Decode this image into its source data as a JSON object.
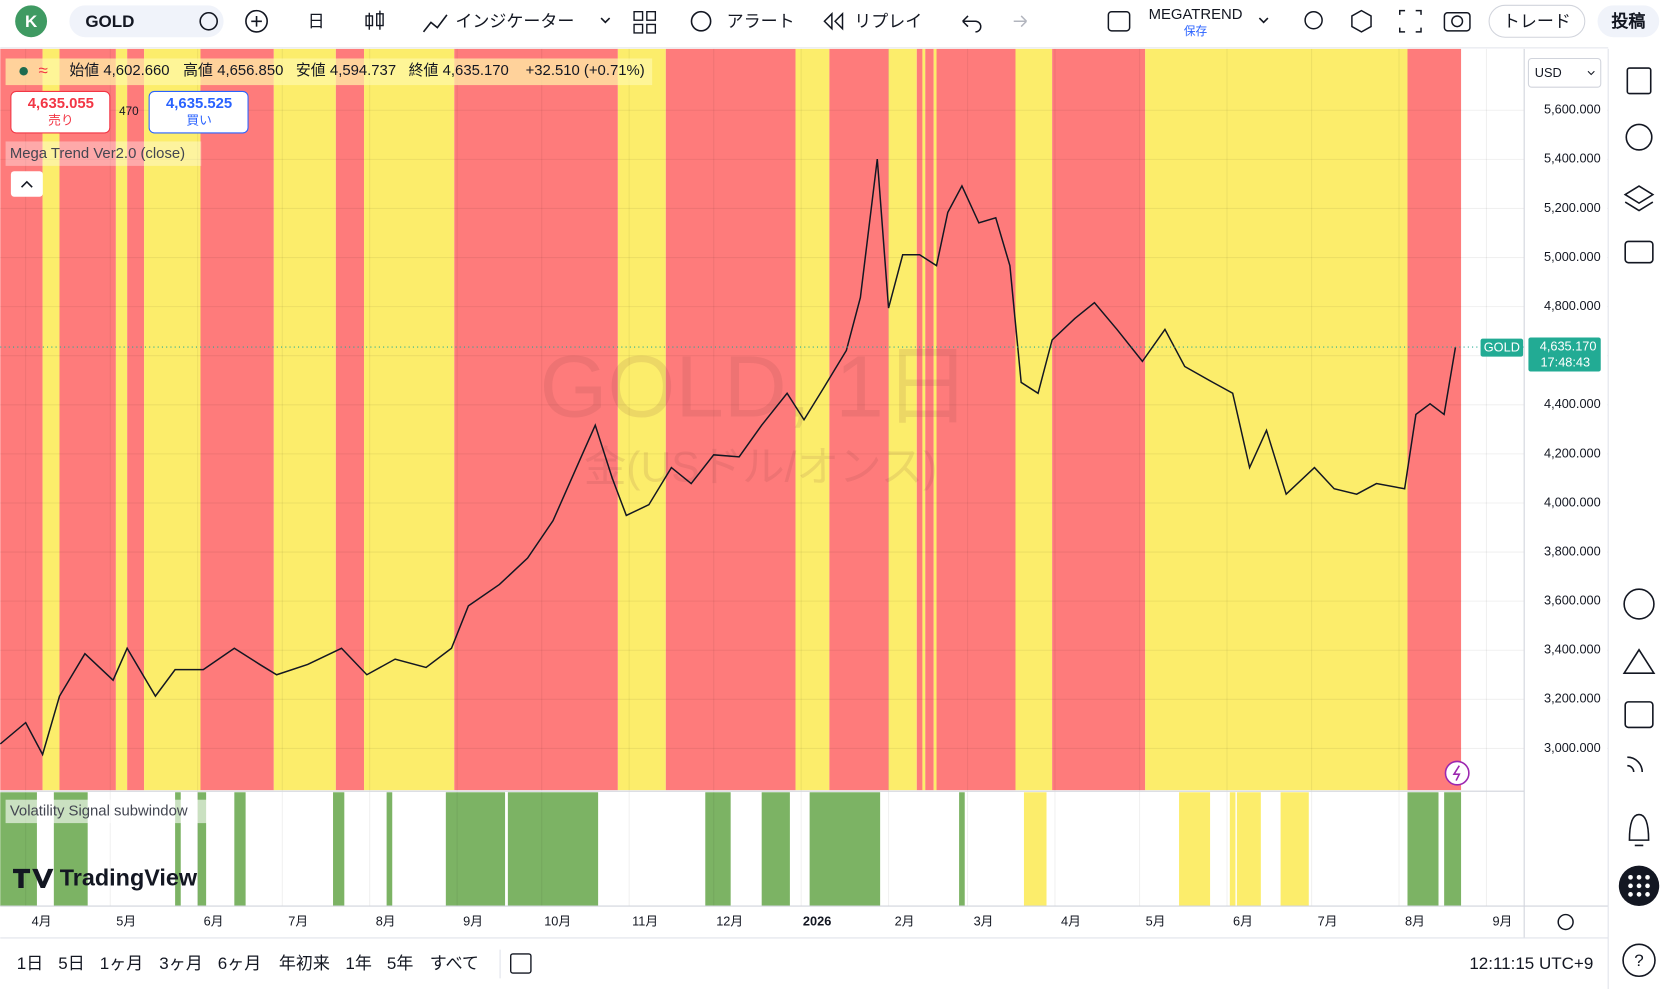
{
  "toolbar": {
    "avatar": "K",
    "symbol": "GOLD",
    "interval": "日",
    "indicators": "インジケーター",
    "alert": "アラート",
    "replay": "リプレイ",
    "layout_name": "MEGATREND",
    "layout_save": "保存",
    "trade": "トレード",
    "publish": "投稿"
  },
  "legend": {
    "open_label": "始値",
    "open": "4,602.660",
    "high_label": "高値",
    "high": "4,656.850",
    "low_label": "安値",
    "low": "4,594.737",
    "close_label": "終値",
    "close": "4,635.170",
    "change": "+32.510 (+0.71%)"
  },
  "order_panel": {
    "sell_price": "4,635.055",
    "sell": "売り",
    "spread": "470",
    "buy_price": "4,635.525",
    "buy": "買い"
  },
  "indicator_name": "Mega Trend Ver2.0 (close)",
  "watermark": "GOLD, 1日",
  "watermark_sub": "金(USドル/オンス)",
  "chart_data": {
    "type": "line",
    "color": "#131722",
    "x": [
      0,
      9,
      15,
      21,
      30,
      40,
      45,
      55,
      62,
      72,
      83,
      92,
      98,
      109,
      121,
      130,
      140,
      151,
      160,
      166,
      177,
      187,
      196,
      206,
      211,
      217,
      222,
      230,
      238,
      245,
      253,
      262,
      270,
      279,
      285,
      292,
      300,
      305,
      311,
      315,
      320,
      326,
      332,
      336,
      341,
      347,
      353,
      358,
      362,
      368,
      373,
      381,
      388,
      396,
      405,
      413,
      420,
      430,
      437,
      443,
      449,
      456,
      466,
      473,
      481,
      488,
      498,
      502,
      507,
      512,
      516
    ],
    "values": [
      3018,
      3105,
      2975,
      3213,
      3386,
      3278,
      3408,
      3213,
      3321,
      3321,
      3408,
      3342,
      3300,
      3342,
      3408,
      3300,
      3364,
      3330,
      3408,
      3581,
      3668,
      3776,
      3928,
      4188,
      4317,
      4101,
      3949,
      3993,
      4144,
      4079,
      4196,
      4188,
      4317,
      4447,
      4339,
      4469,
      4621,
      4837,
      5401,
      4794,
      5011,
      5011,
      4967,
      5184,
      5292,
      5141,
      5162,
      4967,
      4491,
      4447,
      4664,
      4751,
      4816,
      4707,
      4577,
      4707,
      4556,
      4491,
      4447,
      4144,
      4296,
      4036,
      4144,
      4058,
      4036,
      4079,
      4058,
      4361,
      4404,
      4361,
      4635.17
    ],
    "xlim": [
      0,
      540
    ],
    "ylim": [
      2830,
      5850
    ],
    "xticks": [
      {
        "value": 9,
        "label": "4月"
      },
      {
        "value": 39,
        "label": "5月"
      },
      {
        "value": 70,
        "label": "6月"
      },
      {
        "value": 100,
        "label": "7月"
      },
      {
        "value": 131,
        "label": "8月"
      },
      {
        "value": 162,
        "label": "9月"
      },
      {
        "value": 192,
        "label": "10月"
      },
      {
        "value": 223,
        "label": "11月"
      },
      {
        "value": 253,
        "label": "12月"
      },
      {
        "value": 284,
        "label": "2026"
      },
      {
        "value": 315,
        "label": "2月"
      },
      {
        "value": 343,
        "label": "3月"
      },
      {
        "value": 374,
        "label": "4月"
      },
      {
        "value": 404,
        "label": "5月"
      },
      {
        "value": 435,
        "label": "6月"
      },
      {
        "value": 465,
        "label": "7月"
      },
      {
        "value": 496,
        "label": "8月"
      },
      {
        "value": 527,
        "label": "9月"
      }
    ],
    "yticks": [
      {
        "value": 3000,
        "label": "3,000.000"
      },
      {
        "value": 3200,
        "label": "3,200.000"
      },
      {
        "value": 3400,
        "label": "3,400.000"
      },
      {
        "value": 3600,
        "label": "3,600.000"
      },
      {
        "value": 3800,
        "label": "3,800.000"
      },
      {
        "value": 4000,
        "label": "4,000.000"
      },
      {
        "value": 4200,
        "label": "4,200.000"
      },
      {
        "value": 4400,
        "label": "4,400.000"
      },
      {
        "value": 4600,
        "label": "4,600.000"
      },
      {
        "value": 4800,
        "label": "4,800.000"
      },
      {
        "value": 5000,
        "label": "5,000.000"
      },
      {
        "value": 5200,
        "label": "5,200.000"
      },
      {
        "value": 5400,
        "label": "5,400.000"
      },
      {
        "value": 5600,
        "label": "5,600.000"
      }
    ],
    "grid": true,
    "currency": "USD",
    "last_price": {
      "value": 4635.17,
      "label": "4,635.170"
    },
    "price_tag": "GOLD",
    "countdown": "17:48:43",
    "band_edges": [
      0,
      15,
      21,
      41,
      45,
      51,
      71,
      97,
      119,
      129,
      161,
      219,
      236,
      282,
      294,
      315,
      325,
      327,
      328,
      331,
      332,
      360,
      373,
      406,
      499,
      518
    ],
    "band_colors": [
      "#fe7b7b",
      "#fced6b",
      "#fe7b7b",
      "#fced6b",
      "#fe7b7b",
      "#fced6b",
      "#fe7b7b",
      "#fced6b",
      "#fe7b7b",
      "#fced6b",
      "#fe7b7b",
      "#fced6b",
      "#fe7b7b",
      "#fced6b",
      "#fe7b7b",
      "#fced6b",
      "#fe7b7b",
      "#fced6b",
      "#fe7b7b",
      "#fced6b",
      "#fe7b7b",
      "#fced6b",
      "#fe7b7b",
      "#fced6b",
      "#fe7b7b"
    ],
    "signal_title": "Volatility Signal subwindow",
    "signal_bands": [
      {
        "start": 0,
        "end": 13,
        "color": "#7cb364"
      },
      {
        "start": 19,
        "end": 31,
        "color": "#7cb364"
      },
      {
        "start": 62,
        "end": 64,
        "color": "#7cb364"
      },
      {
        "start": 70,
        "end": 73,
        "color": "#7cb364"
      },
      {
        "start": 83,
        "end": 87,
        "color": "#7cb364"
      },
      {
        "start": 118,
        "end": 122,
        "color": "#7cb364"
      },
      {
        "start": 137,
        "end": 139,
        "color": "#7cb364"
      },
      {
        "start": 158,
        "end": 179,
        "color": "#7cb364"
      },
      {
        "start": 180,
        "end": 212,
        "color": "#7cb364"
      },
      {
        "start": 250,
        "end": 259,
        "color": "#7cb364"
      },
      {
        "start": 270,
        "end": 280,
        "color": "#7cb364"
      },
      {
        "start": 287,
        "end": 312,
        "color": "#7cb364"
      },
      {
        "start": 340,
        "end": 342,
        "color": "#7cb364"
      },
      {
        "start": 363,
        "end": 371,
        "color": "#fced6b"
      },
      {
        "start": 418,
        "end": 429,
        "color": "#fced6b"
      },
      {
        "start": 436,
        "end": 438,
        "color": "#fced6b"
      },
      {
        "start": 438.5,
        "end": 447,
        "color": "#fced6b"
      },
      {
        "start": 454,
        "end": 464,
        "color": "#fced6b"
      },
      {
        "start": 499,
        "end": 510,
        "color": "#7cb364"
      },
      {
        "start": 512,
        "end": 518,
        "color": "#7cb364"
      }
    ]
  },
  "logo": "TradingView",
  "ranges": [
    "1日",
    "5日",
    "1ヶ月",
    "3ヶ月",
    "6ヶ月",
    "年初来",
    "1年",
    "5年",
    "すべて"
  ],
  "clock": "12:11:15 UTC+9"
}
